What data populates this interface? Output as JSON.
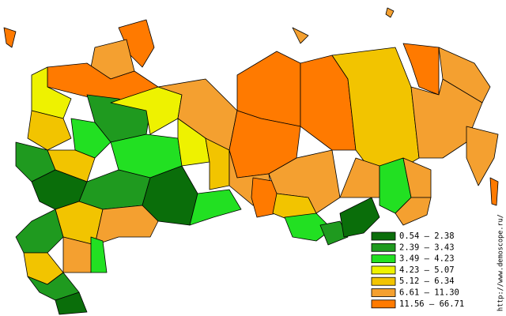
{
  "map": {
    "legend": [
      {
        "label": "0.54 – 2.38",
        "color": "#0a6e0a"
      },
      {
        "label": "2.39 – 3.43",
        "color": "#1f9a1f"
      },
      {
        "label": "3.49 – 4.23",
        "color": "#22e022"
      },
      {
        "label": "4.23 – 5.07",
        "color": "#eef200"
      },
      {
        "label": "5.12 – 6.34",
        "color": "#f2c400"
      },
      {
        "label": "6.61 – 11.30",
        "color": "#f4a030"
      },
      {
        "label": "11.56 – 66.71",
        "color": "#ff7a00"
      }
    ],
    "source": "http://www.demoscope.ru/"
  }
}
